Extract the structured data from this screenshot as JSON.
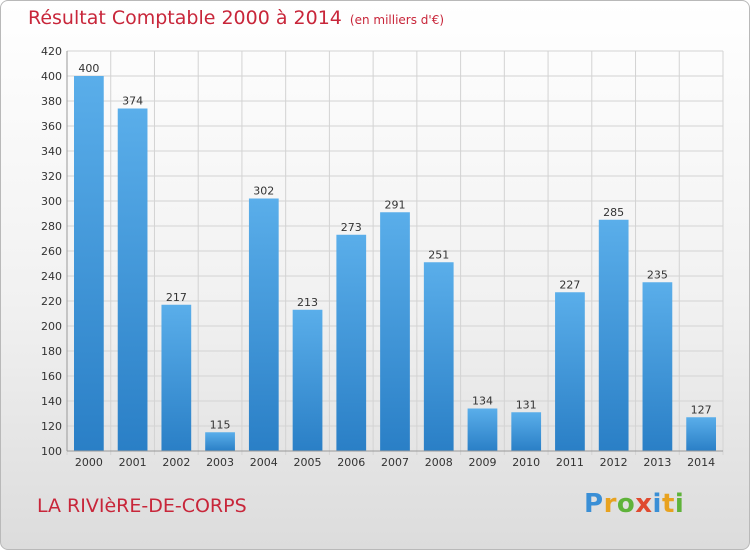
{
  "title": "Résultat Comptable 2000 à 2014",
  "subtitle": "(en milliers d'€)",
  "location": "LA RIVIèRE-DE-CORPS",
  "logo": {
    "text": "Proxiti",
    "letter_colors": [
      "#3a8fd6",
      "#e8a21f",
      "#5fb33a",
      "#e04a2f",
      "#3a8fd6",
      "#e8a21f",
      "#5fb33a"
    ]
  },
  "chart_data": {
    "type": "bar",
    "title": "Résultat Comptable 2000 à 2014",
    "subtitle": "(en milliers d'€)",
    "xlabel": "",
    "ylabel": "",
    "categories": [
      "2000",
      "2001",
      "2002",
      "2003",
      "2004",
      "2005",
      "2006",
      "2007",
      "2008",
      "2009",
      "2010",
      "2011",
      "2012",
      "2013",
      "2014"
    ],
    "values": [
      400,
      374,
      217,
      115,
      302,
      213,
      273,
      291,
      251,
      134,
      131,
      227,
      285,
      235,
      127
    ],
    "data_labels": [
      "400",
      "374",
      "217",
      "115",
      "302",
      "213",
      "273",
      "291",
      "251",
      "134",
      "131",
      "227",
      "285",
      "235",
      "127"
    ],
    "ylim": [
      100,
      420
    ],
    "yticks": [
      100,
      120,
      140,
      160,
      180,
      200,
      220,
      240,
      260,
      280,
      300,
      320,
      340,
      360,
      380,
      400,
      420
    ],
    "grid": true,
    "legend": "none",
    "colors": {
      "bar_top": "#5aaeea",
      "bar_bottom": "#2a7fc6",
      "grid": "#d3d3d3",
      "axis_text": "#333333"
    }
  }
}
